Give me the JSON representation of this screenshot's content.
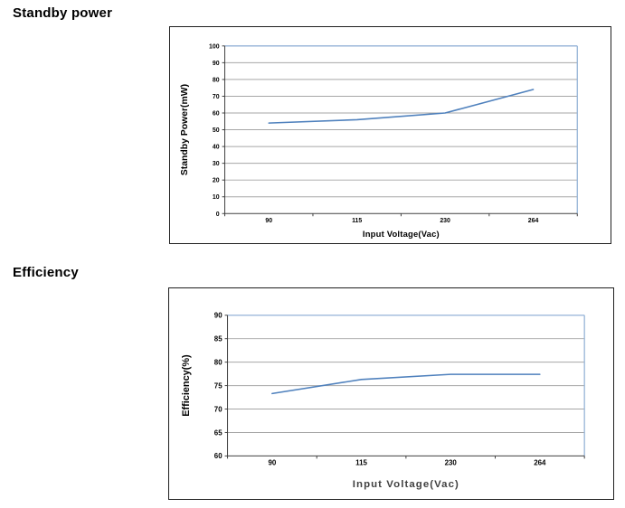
{
  "sections": [
    {
      "heading": "Standby power"
    },
    {
      "heading": "Efficiency"
    }
  ],
  "chart_data": [
    {
      "type": "line",
      "title": "",
      "categories": [
        "90",
        "115",
        "230",
        "264"
      ],
      "series": [
        {
          "name": "Standby Power",
          "values": [
            54,
            56,
            60,
            74
          ]
        }
      ],
      "xlabel": "Input Voltage(Vac)",
      "ylabel": "Standby Power(mW)",
      "ylim": [
        0,
        100
      ],
      "ytick_step": 10,
      "grid": true,
      "legend": "none",
      "colors": {
        "line": "#4f81bd",
        "grid": "#a6a6a6",
        "plot_border": "#95b3d7",
        "axis": "#404040",
        "tick_label": "#000000",
        "axis_title": "#000000",
        "y_title": "#000000"
      }
    },
    {
      "type": "line",
      "title": "",
      "categories": [
        "90",
        "115",
        "230",
        "264"
      ],
      "series": [
        {
          "name": "Efficiency",
          "values": [
            73.3,
            76.3,
            77.4,
            77.4
          ]
        }
      ],
      "xlabel": "Input Voltage(Vac)",
      "ylabel": "Efficiency(%)",
      "ylim": [
        60,
        90
      ],
      "ytick_step": 5,
      "grid": true,
      "legend": "none",
      "colors": {
        "line": "#4f81bd",
        "grid": "#a6a6a6",
        "plot_border": "#95b3d7",
        "axis": "#404040",
        "tick_label": "#000000",
        "axis_title": "#404040",
        "y_title": "#000000"
      }
    }
  ]
}
